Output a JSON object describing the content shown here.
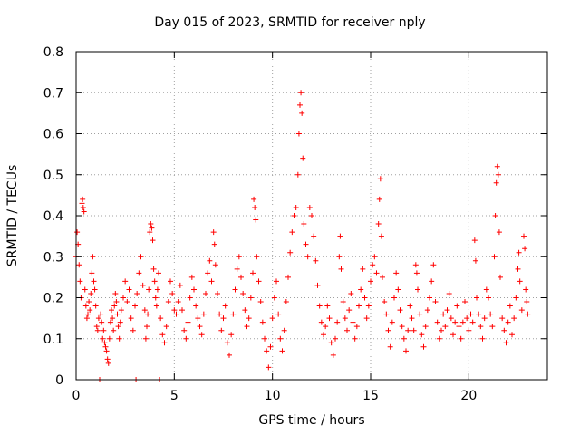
{
  "chart_data": {
    "type": "scatter",
    "title": "Day 015 of 2023, SRMTID for receiver nply",
    "xlabel": "GPS time / hours",
    "ylabel": "SRMTID / TECUs",
    "xlim": [
      0,
      24
    ],
    "ylim": [
      0,
      0.8
    ],
    "xticks": [
      0,
      5,
      10,
      15,
      20
    ],
    "yticks": [
      0,
      0.1,
      0.2,
      0.3,
      0.4,
      0.5,
      0.6,
      0.7,
      0.8
    ],
    "xtick_labels": [
      "0",
      "5",
      "10",
      "15",
      "20"
    ],
    "ytick_labels": [
      "0",
      "0.1",
      "0.2",
      "0.3",
      "0.4",
      "0.5",
      "0.6",
      "0.7",
      "0.8"
    ],
    "grid": true,
    "marker": "+",
    "color": "#ff0000",
    "series": [
      {
        "name": "SRMTID",
        "points": [
          [
            0.0,
            0.3
          ],
          [
            0.05,
            0.36
          ],
          [
            0.1,
            0.33
          ],
          [
            0.15,
            0.28
          ],
          [
            0.2,
            0.24
          ],
          [
            0.25,
            0.2
          ],
          [
            0.3,
            0.43
          ],
          [
            0.33,
            0.44
          ],
          [
            0.36,
            0.42
          ],
          [
            0.4,
            0.41
          ],
          [
            0.45,
            0.22
          ],
          [
            0.5,
            0.18
          ],
          [
            0.55,
            0.15
          ],
          [
            0.6,
            0.16
          ],
          [
            0.65,
            0.19
          ],
          [
            0.7,
            0.17
          ],
          [
            0.75,
            0.21
          ],
          [
            0.8,
            0.26
          ],
          [
            0.85,
            0.3
          ],
          [
            0.9,
            0.24
          ],
          [
            0.95,
            0.22
          ],
          [
            1.0,
            0.18
          ],
          [
            1.05,
            0.13
          ],
          [
            1.1,
            0.12
          ],
          [
            1.15,
            0.15
          ],
          [
            1.2,
            0.0
          ],
          [
            1.25,
            0.16
          ],
          [
            1.3,
            0.14
          ],
          [
            1.35,
            0.1
          ],
          [
            1.4,
            0.12
          ],
          [
            1.45,
            0.09
          ],
          [
            1.5,
            0.08
          ],
          [
            1.55,
            0.07
          ],
          [
            1.6,
            0.05
          ],
          [
            1.65,
            0.04
          ],
          [
            1.7,
            0.1
          ],
          [
            1.75,
            0.14
          ],
          [
            1.8,
            0.17
          ],
          [
            1.85,
            0.15
          ],
          [
            1.9,
            0.12
          ],
          [
            1.95,
            0.18
          ],
          [
            2.0,
            0.21
          ],
          [
            2.05,
            0.19
          ],
          [
            2.1,
            0.16
          ],
          [
            2.15,
            0.13
          ],
          [
            2.2,
            0.1
          ],
          [
            2.25,
            0.14
          ],
          [
            2.3,
            0.17
          ],
          [
            2.4,
            0.2
          ],
          [
            2.5,
            0.24
          ],
          [
            2.6,
            0.19
          ],
          [
            2.7,
            0.22
          ],
          [
            2.8,
            0.15
          ],
          [
            2.9,
            0.12
          ],
          [
            3.0,
            0.18
          ],
          [
            3.05,
            0.0
          ],
          [
            3.1,
            0.21
          ],
          [
            3.2,
            0.26
          ],
          [
            3.3,
            0.3
          ],
          [
            3.4,
            0.23
          ],
          [
            3.5,
            0.17
          ],
          [
            3.55,
            0.1
          ],
          [
            3.6,
            0.13
          ],
          [
            3.65,
            0.16
          ],
          [
            3.7,
            0.22
          ],
          [
            3.75,
            0.36
          ],
          [
            3.8,
            0.38
          ],
          [
            3.85,
            0.37
          ],
          [
            3.9,
            0.34
          ],
          [
            3.95,
            0.27
          ],
          [
            4.0,
            0.24
          ],
          [
            4.05,
            0.2
          ],
          [
            4.1,
            0.18
          ],
          [
            4.15,
            0.22
          ],
          [
            4.2,
            0.26
          ],
          [
            4.25,
            0.0
          ],
          [
            4.3,
            0.15
          ],
          [
            4.4,
            0.11
          ],
          [
            4.5,
            0.09
          ],
          [
            4.6,
            0.13
          ],
          [
            4.7,
            0.19
          ],
          [
            4.8,
            0.24
          ],
          [
            4.9,
            0.21
          ],
          [
            5.0,
            0.17
          ],
          [
            5.1,
            0.16
          ],
          [
            5.2,
            0.19
          ],
          [
            5.3,
            0.23
          ],
          [
            5.4,
            0.17
          ],
          [
            5.5,
            0.12
          ],
          [
            5.6,
            0.1
          ],
          [
            5.7,
            0.14
          ],
          [
            5.8,
            0.2
          ],
          [
            5.9,
            0.25
          ],
          [
            6.0,
            0.22
          ],
          [
            6.1,
            0.18
          ],
          [
            6.2,
            0.15
          ],
          [
            6.3,
            0.13
          ],
          [
            6.4,
            0.11
          ],
          [
            6.5,
            0.16
          ],
          [
            6.6,
            0.21
          ],
          [
            6.7,
            0.26
          ],
          [
            6.8,
            0.29
          ],
          [
            6.9,
            0.24
          ],
          [
            7.0,
            0.36
          ],
          [
            7.05,
            0.33
          ],
          [
            7.1,
            0.28
          ],
          [
            7.2,
            0.21
          ],
          [
            7.3,
            0.16
          ],
          [
            7.4,
            0.12
          ],
          [
            7.5,
            0.15
          ],
          [
            7.6,
            0.18
          ],
          [
            7.7,
            0.09
          ],
          [
            7.8,
            0.06
          ],
          [
            7.9,
            0.11
          ],
          [
            8.0,
            0.16
          ],
          [
            8.1,
            0.22
          ],
          [
            8.2,
            0.27
          ],
          [
            8.3,
            0.3
          ],
          [
            8.4,
            0.25
          ],
          [
            8.5,
            0.21
          ],
          [
            8.6,
            0.17
          ],
          [
            8.7,
            0.13
          ],
          [
            8.8,
            0.15
          ],
          [
            8.9,
            0.2
          ],
          [
            9.0,
            0.26
          ],
          [
            9.05,
            0.44
          ],
          [
            9.1,
            0.42
          ],
          [
            9.15,
            0.39
          ],
          [
            9.2,
            0.3
          ],
          [
            9.3,
            0.24
          ],
          [
            9.4,
            0.19
          ],
          [
            9.5,
            0.14
          ],
          [
            9.6,
            0.1
          ],
          [
            9.7,
            0.07
          ],
          [
            9.8,
            0.03
          ],
          [
            9.9,
            0.08
          ],
          [
            10.0,
            0.15
          ],
          [
            10.1,
            0.2
          ],
          [
            10.2,
            0.24
          ],
          [
            10.3,
            0.16
          ],
          [
            10.4,
            0.1
          ],
          [
            10.5,
            0.07
          ],
          [
            10.6,
            0.12
          ],
          [
            10.7,
            0.19
          ],
          [
            10.8,
            0.25
          ],
          [
            10.9,
            0.31
          ],
          [
            11.0,
            0.36
          ],
          [
            11.1,
            0.4
          ],
          [
            11.2,
            0.42
          ],
          [
            11.3,
            0.5
          ],
          [
            11.35,
            0.6
          ],
          [
            11.4,
            0.67
          ],
          [
            11.45,
            0.7
          ],
          [
            11.5,
            0.65
          ],
          [
            11.55,
            0.54
          ],
          [
            11.6,
            0.38
          ],
          [
            11.7,
            0.33
          ],
          [
            11.8,
            0.3
          ],
          [
            11.9,
            0.42
          ],
          [
            12.0,
            0.4
          ],
          [
            12.1,
            0.35
          ],
          [
            12.2,
            0.29
          ],
          [
            12.3,
            0.23
          ],
          [
            12.4,
            0.18
          ],
          [
            12.5,
            0.14
          ],
          [
            12.6,
            0.11
          ],
          [
            12.7,
            0.13
          ],
          [
            12.8,
            0.18
          ],
          [
            12.9,
            0.15
          ],
          [
            13.0,
            0.09
          ],
          [
            13.1,
            0.06
          ],
          [
            13.2,
            0.1
          ],
          [
            13.3,
            0.14
          ],
          [
            13.4,
            0.3
          ],
          [
            13.45,
            0.35
          ],
          [
            13.5,
            0.27
          ],
          [
            13.6,
            0.19
          ],
          [
            13.7,
            0.15
          ],
          [
            13.8,
            0.12
          ],
          [
            13.9,
            0.17
          ],
          [
            14.0,
            0.21
          ],
          [
            14.1,
            0.14
          ],
          [
            14.2,
            0.1
          ],
          [
            14.3,
            0.13
          ],
          [
            14.4,
            0.18
          ],
          [
            14.5,
            0.22
          ],
          [
            14.6,
            0.27
          ],
          [
            14.7,
            0.2
          ],
          [
            14.8,
            0.15
          ],
          [
            14.9,
            0.18
          ],
          [
            15.0,
            0.24
          ],
          [
            15.1,
            0.28
          ],
          [
            15.2,
            0.3
          ],
          [
            15.3,
            0.26
          ],
          [
            15.4,
            0.38
          ],
          [
            15.45,
            0.44
          ],
          [
            15.5,
            0.49
          ],
          [
            15.55,
            0.35
          ],
          [
            15.6,
            0.25
          ],
          [
            15.7,
            0.19
          ],
          [
            15.8,
            0.16
          ],
          [
            15.9,
            0.12
          ],
          [
            16.0,
            0.08
          ],
          [
            16.1,
            0.14
          ],
          [
            16.2,
            0.2
          ],
          [
            16.3,
            0.26
          ],
          [
            16.4,
            0.22
          ],
          [
            16.5,
            0.17
          ],
          [
            16.6,
            0.13
          ],
          [
            16.7,
            0.1
          ],
          [
            16.8,
            0.07
          ],
          [
            16.9,
            0.12
          ],
          [
            17.0,
            0.18
          ],
          [
            17.1,
            0.15
          ],
          [
            17.2,
            0.12
          ],
          [
            17.3,
            0.28
          ],
          [
            17.35,
            0.26
          ],
          [
            17.4,
            0.22
          ],
          [
            17.5,
            0.16
          ],
          [
            17.6,
            0.11
          ],
          [
            17.7,
            0.08
          ],
          [
            17.8,
            0.13
          ],
          [
            17.9,
            0.17
          ],
          [
            18.0,
            0.2
          ],
          [
            18.1,
            0.24
          ],
          [
            18.2,
            0.28
          ],
          [
            18.3,
            0.19
          ],
          [
            18.4,
            0.14
          ],
          [
            18.5,
            0.1
          ],
          [
            18.6,
            0.12
          ],
          [
            18.7,
            0.16
          ],
          [
            18.8,
            0.13
          ],
          [
            18.9,
            0.17
          ],
          [
            19.0,
            0.21
          ],
          [
            19.1,
            0.15
          ],
          [
            19.2,
            0.11
          ],
          [
            19.3,
            0.14
          ],
          [
            19.4,
            0.18
          ],
          [
            19.5,
            0.13
          ],
          [
            19.6,
            0.1
          ],
          [
            19.7,
            0.14
          ],
          [
            19.8,
            0.19
          ],
          [
            19.9,
            0.15
          ],
          [
            20.0,
            0.12
          ],
          [
            20.1,
            0.16
          ],
          [
            20.2,
            0.14
          ],
          [
            20.3,
            0.34
          ],
          [
            20.35,
            0.29
          ],
          [
            20.4,
            0.2
          ],
          [
            20.5,
            0.16
          ],
          [
            20.6,
            0.13
          ],
          [
            20.7,
            0.1
          ],
          [
            20.8,
            0.15
          ],
          [
            20.9,
            0.22
          ],
          [
            21.0,
            0.2
          ],
          [
            21.1,
            0.16
          ],
          [
            21.2,
            0.13
          ],
          [
            21.3,
            0.3
          ],
          [
            21.35,
            0.4
          ],
          [
            21.4,
            0.48
          ],
          [
            21.45,
            0.52
          ],
          [
            21.5,
            0.5
          ],
          [
            21.55,
            0.36
          ],
          [
            21.6,
            0.25
          ],
          [
            21.7,
            0.15
          ],
          [
            21.8,
            0.12
          ],
          [
            21.9,
            0.09
          ],
          [
            22.0,
            0.14
          ],
          [
            22.1,
            0.18
          ],
          [
            22.2,
            0.11
          ],
          [
            22.3,
            0.15
          ],
          [
            22.4,
            0.2
          ],
          [
            22.5,
            0.27
          ],
          [
            22.55,
            0.31
          ],
          [
            22.6,
            0.24
          ],
          [
            22.7,
            0.17
          ],
          [
            22.8,
            0.35
          ],
          [
            22.85,
            0.32
          ],
          [
            22.9,
            0.22
          ],
          [
            22.95,
            0.19
          ],
          [
            23.0,
            0.16
          ]
        ]
      }
    ]
  }
}
